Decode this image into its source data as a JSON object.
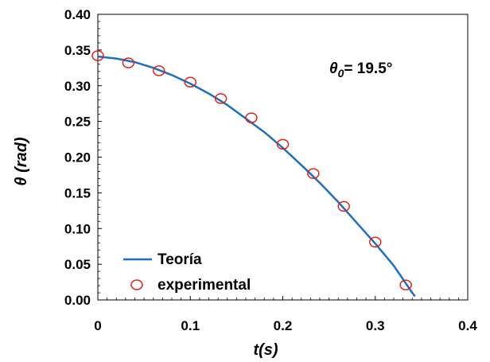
{
  "chart_data": {
    "type": "line",
    "xlabel": "t(s)",
    "ylabel": "θ (rad)",
    "xlim": [
      0,
      0.4
    ],
    "ylim": [
      0,
      0.4
    ],
    "x_ticks": [
      "0",
      "0.1",
      "0.2",
      "0.3",
      "0.4"
    ],
    "y_ticks": [
      "0.00",
      "0.05",
      "0.10",
      "0.15",
      "0.20",
      "0.25",
      "0.30",
      "0.35",
      "0.40"
    ],
    "grid": false,
    "legend_position": "bottom-left",
    "annotation": {
      "symbol": "θ",
      "subscript": "0",
      "value": "= 19.5°"
    },
    "series": [
      {
        "name": "Teoría",
        "kind": "line",
        "color": "#1f6fc1",
        "x": [
          0,
          0.02,
          0.04,
          0.06,
          0.08,
          0.1,
          0.12,
          0.14,
          0.16,
          0.18,
          0.2,
          0.22,
          0.24,
          0.26,
          0.28,
          0.3,
          0.32,
          0.34,
          0.343
        ],
        "y": [
          0.341,
          0.338,
          0.333,
          0.325,
          0.315,
          0.303,
          0.289,
          0.273,
          0.254,
          0.235,
          0.213,
          0.189,
          0.164,
          0.137,
          0.108,
          0.079,
          0.048,
          0.01,
          0.005
        ]
      },
      {
        "name": "experimental",
        "kind": "scatter",
        "color": "#e02020",
        "x": [
          0,
          0.033,
          0.066,
          0.1,
          0.133,
          0.166,
          0.2,
          0.233,
          0.266,
          0.3,
          0.333
        ],
        "y": [
          0.342,
          0.332,
          0.321,
          0.305,
          0.282,
          0.255,
          0.218,
          0.177,
          0.131,
          0.081,
          0.021
        ]
      }
    ]
  }
}
